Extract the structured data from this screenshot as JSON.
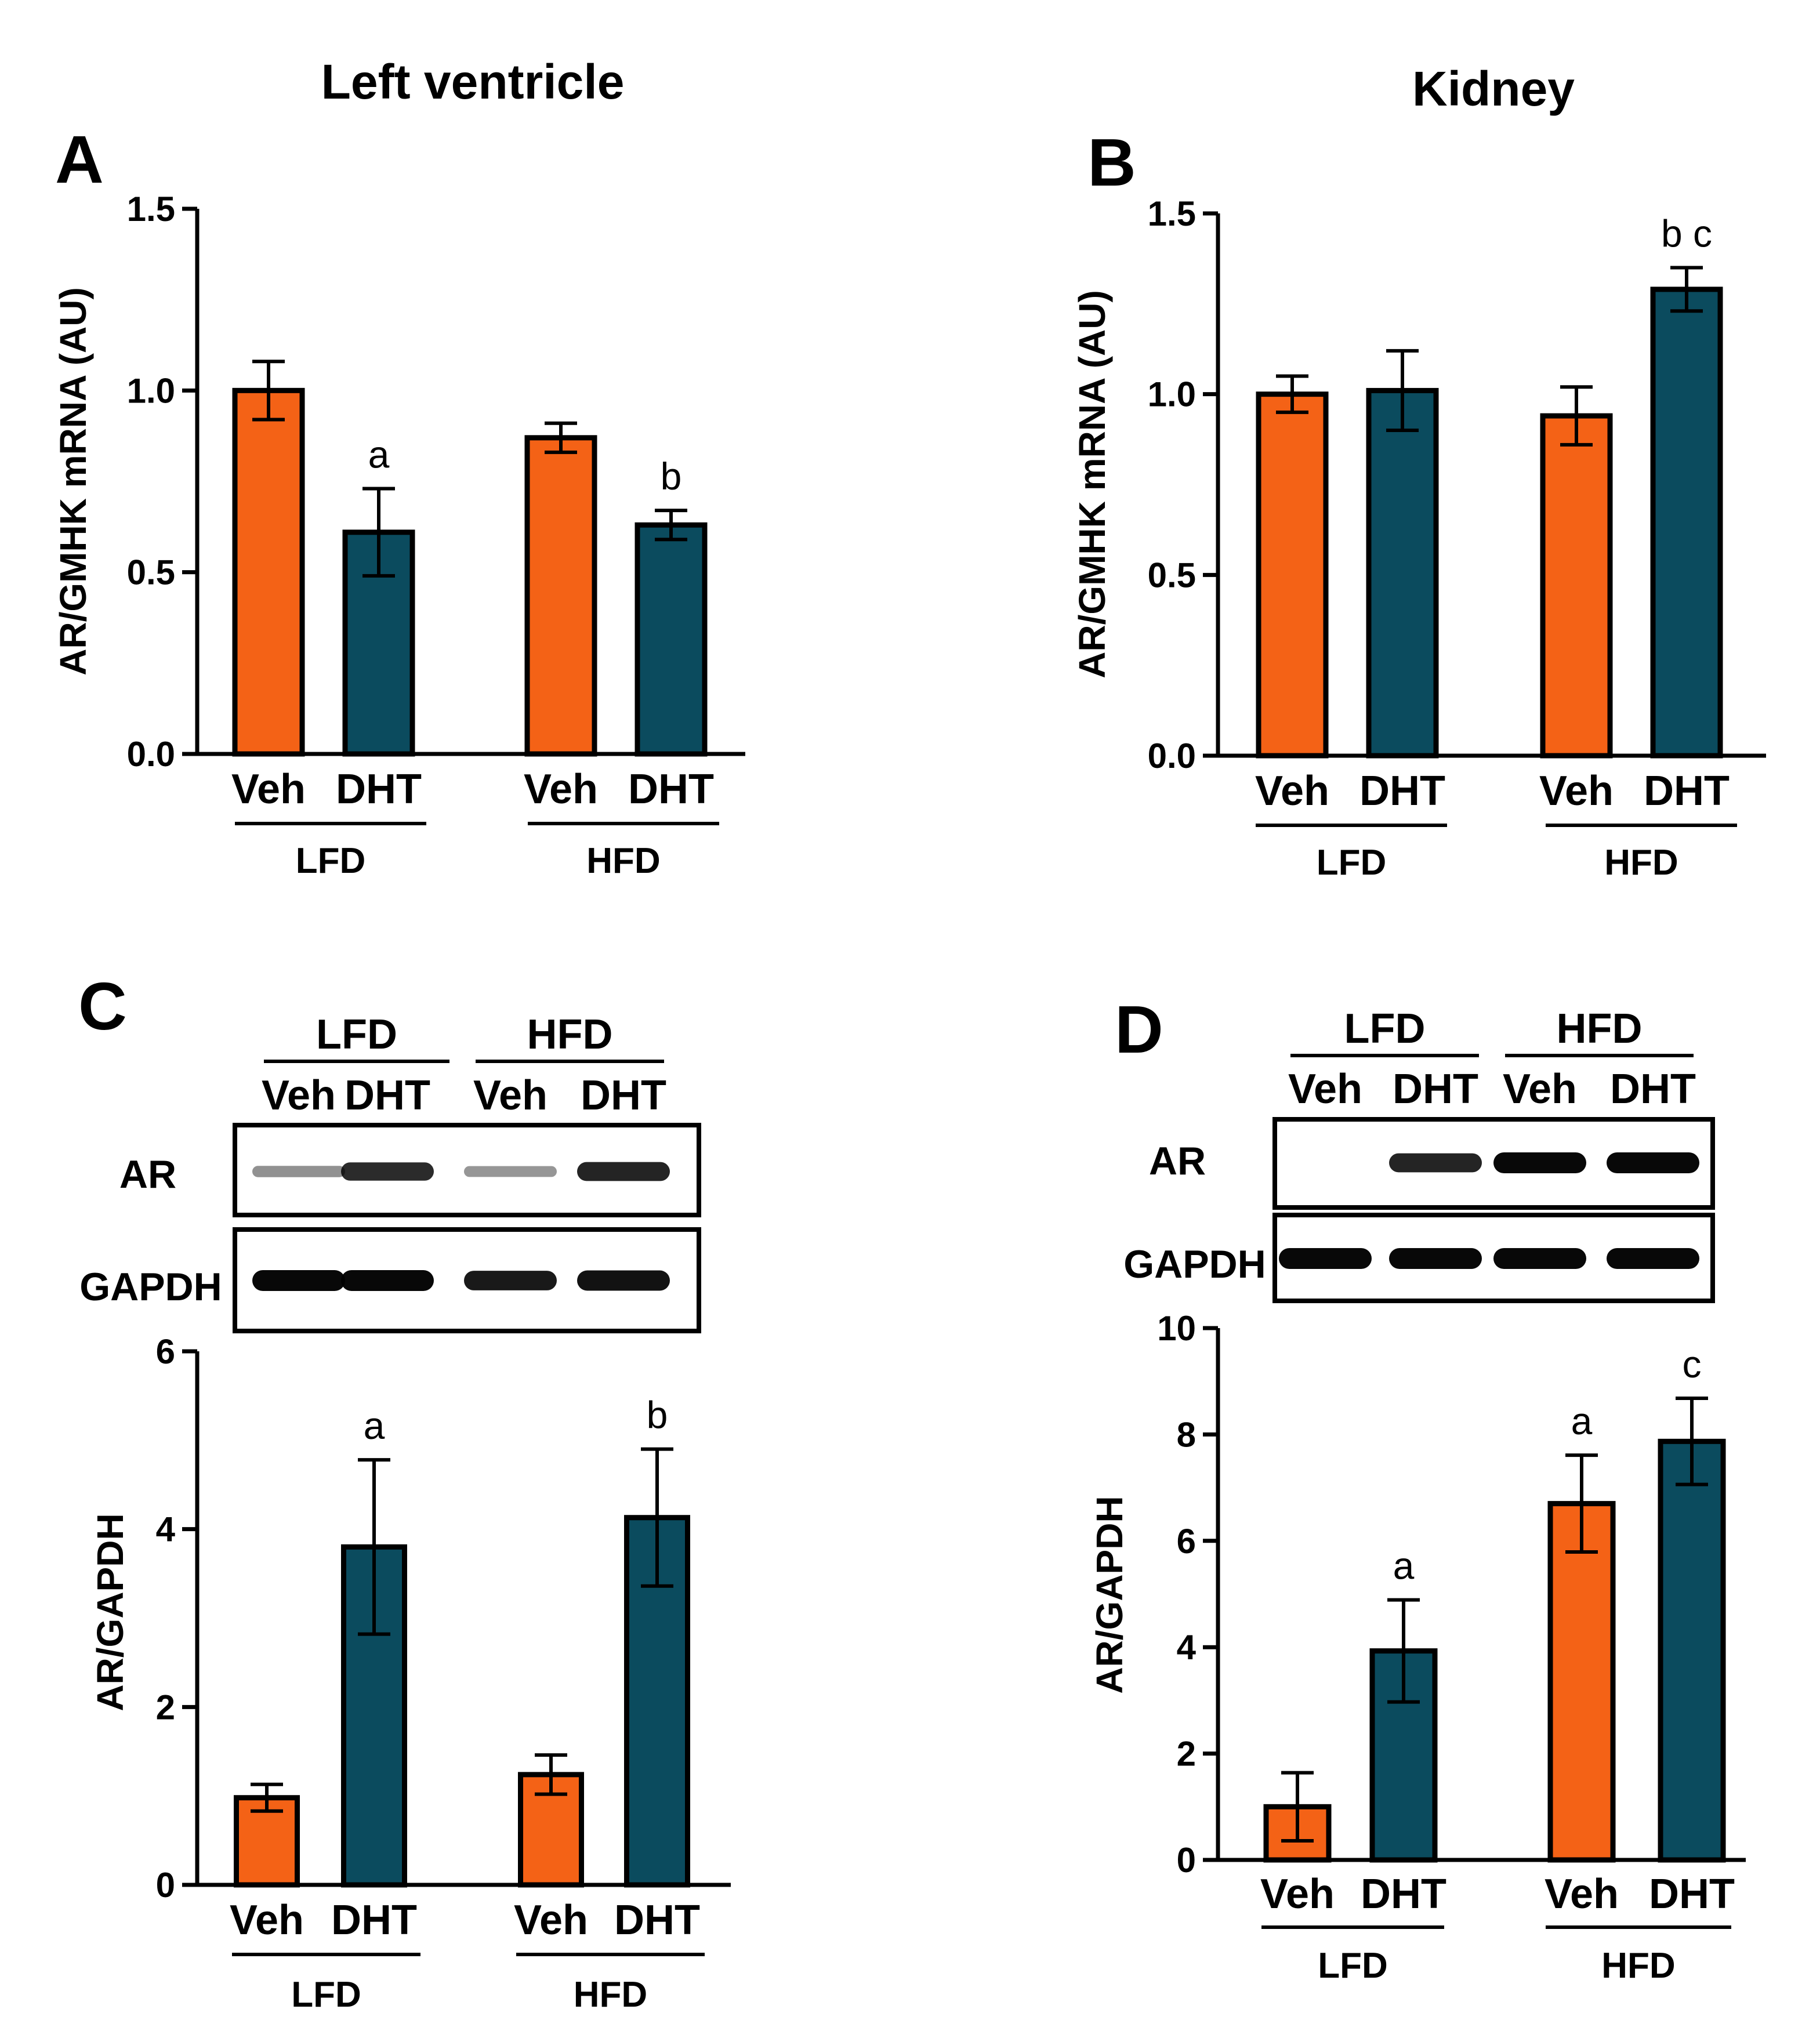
{
  "colors": {
    "veh": "#F46216",
    "dht": "#0B4B5E",
    "ink": "#000000",
    "background": "#FFFFFF"
  },
  "panels": [
    {
      "label": "A",
      "title": "Left ventricle",
      "blot": null,
      "group_labels": [
        "LFD",
        "HFD"
      ]
    },
    {
      "label": "B",
      "title": "Kidney",
      "blot": null,
      "group_labels": [
        "LFD",
        "HFD"
      ]
    },
    {
      "label": "C",
      "title": "",
      "blot": {
        "groups": [
          "LFD",
          "HFD"
        ],
        "lanes": [
          "Veh",
          "DHT",
          "Veh",
          "DHT"
        ],
        "rows": [
          "AR",
          "GAPDH"
        ],
        "band_intensity": {
          "AR": [
            0.25,
            0.8,
            0.22,
            0.85
          ],
          "GAPDH": [
            1,
            1,
            0.9,
            0.95
          ]
        }
      },
      "group_labels": [
        "LFD",
        "HFD"
      ]
    },
    {
      "label": "D",
      "title": "",
      "blot": {
        "groups": [
          "LFD",
          "HFD"
        ],
        "lanes": [
          "Veh",
          "DHT",
          "Veh",
          "DHT"
        ],
        "rows": [
          "AR",
          "GAPDH"
        ],
        "band_intensity": {
          "AR": [
            0,
            0.85,
            1,
            1
          ],
          "GAPDH": [
            1,
            1,
            1,
            1
          ]
        }
      },
      "group_labels": [
        "LFD",
        "HFD"
      ]
    }
  ],
  "chart_data": [
    {
      "panel": "A",
      "type": "bar",
      "title": "Left ventricle",
      "ylabel": "AR/GMHK mRNA (AU)",
      "ylim": [
        0,
        1.5
      ],
      "yticks": [
        0,
        0.5,
        1,
        1.5
      ],
      "ytick_labels": [
        "0.0",
        "0.5",
        "1.0",
        "1.5"
      ],
      "categories": [
        "Veh",
        "DHT",
        "Veh",
        "DHT"
      ],
      "groups": [
        "LFD",
        "HFD"
      ],
      "values": [
        1.0,
        0.61,
        0.87,
        0.63
      ],
      "errors": [
        0.08,
        0.12,
        0.04,
        0.04
      ],
      "annotations": [
        "",
        "a",
        "",
        "b"
      ]
    },
    {
      "panel": "B",
      "type": "bar",
      "title": "Kidney",
      "ylabel": "AR/GMHK mRNA (AU)",
      "ylim": [
        0,
        1.5
      ],
      "yticks": [
        0,
        0.5,
        1,
        1.5
      ],
      "ytick_labels": [
        "0.0",
        "0.5",
        "1.0",
        "1.5"
      ],
      "categories": [
        "Veh",
        "DHT",
        "Veh",
        "DHT"
      ],
      "groups": [
        "LFD",
        "HFD"
      ],
      "values": [
        1.0,
        1.01,
        0.94,
        1.29
      ],
      "errors": [
        0.05,
        0.11,
        0.08,
        0.06
      ],
      "annotations": [
        "",
        "",
        "",
        "b c"
      ]
    },
    {
      "panel": "C",
      "type": "bar",
      "title": "",
      "ylabel": "AR/GAPDH",
      "ylim": [
        0,
        6
      ],
      "yticks": [
        0,
        2,
        4,
        6
      ],
      "ytick_labels": [
        "0",
        "2",
        "4",
        "6"
      ],
      "categories": [
        "Veh",
        "DHT",
        "Veh",
        "DHT"
      ],
      "groups": [
        "LFD",
        "HFD"
      ],
      "values": [
        0.98,
        3.8,
        1.24,
        4.13
      ],
      "errors": [
        0.15,
        0.98,
        0.22,
        0.77
      ],
      "annotations": [
        "",
        "a",
        "",
        "b"
      ]
    },
    {
      "panel": "D",
      "type": "bar",
      "title": "",
      "ylabel": "AR/GAPDH",
      "ylim": [
        0,
        10
      ],
      "yticks": [
        0,
        2,
        4,
        6,
        8,
        10
      ],
      "ytick_labels": [
        "0",
        "2",
        "4",
        "6",
        "8",
        "10"
      ],
      "categories": [
        "Veh",
        "DHT",
        "Veh",
        "DHT"
      ],
      "groups": [
        "LFD",
        "HFD"
      ],
      "values": [
        1.0,
        3.93,
        6.7,
        7.87
      ],
      "errors": [
        0.64,
        0.96,
        0.91,
        0.81
      ],
      "annotations": [
        "",
        "a",
        "a",
        "c"
      ]
    }
  ]
}
